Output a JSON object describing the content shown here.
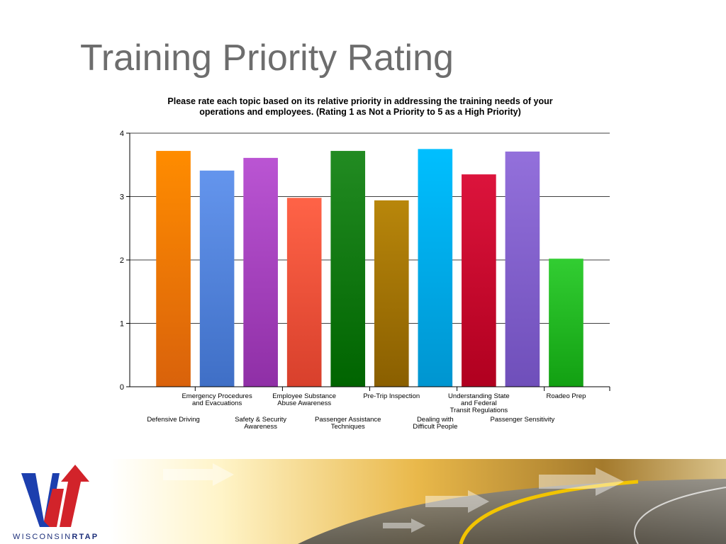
{
  "slide": {
    "title": "Training Priority Rating",
    "logo_text_plain": "WISCONSIN",
    "logo_text_bold": "RTAP"
  },
  "chart_data": {
    "type": "bar",
    "title_line1": "Please rate each topic based on its relative priority in addressing the training needs of your",
    "title_line2": "operations and employees. (Rating 1 as Not a Priority to 5 as a High Priority)",
    "ylim": [
      0,
      4
    ],
    "yticks": [
      "0",
      "1",
      "2",
      "3",
      "4"
    ],
    "grid": true,
    "categories": [
      "Defensive Driving",
      "Emergency Procedures and Evacuations",
      "Safety & Security Awareness",
      "Employee Substance Abuse Awareness",
      "Passenger Assistance Techniques",
      "Pre-Trip Inspection",
      "Dealing with Difficult People",
      "Understanding State and Federal Transit Regulations",
      "Passenger Sensitivity",
      "Roadeo Prep"
    ],
    "category_label_lines": [
      [
        "Defensive Driving"
      ],
      [
        "Emergency Procedures",
        "and Evacuations"
      ],
      [
        "Safety & Security",
        "Awareness"
      ],
      [
        "Employee Substance",
        "Abuse Awareness"
      ],
      [
        "Passenger Assistance",
        "Techniques"
      ],
      [
        "Pre-Trip Inspection"
      ],
      [
        "Dealing with",
        "Difficult People"
      ],
      [
        "Understanding State",
        "and Federal",
        "Transit Regulations"
      ],
      [
        "Passenger Sensitivity"
      ],
      [
        "Roadeo Prep"
      ]
    ],
    "values": [
      3.72,
      3.41,
      3.61,
      2.98,
      3.72,
      2.94,
      3.75,
      3.35,
      3.71,
      2.02
    ],
    "colors": [
      [
        "#ff8c00",
        "#d9620b"
      ],
      [
        "#6495ed",
        "#3f6fc6"
      ],
      [
        "#ba55d3",
        "#8f2fa6"
      ],
      [
        "#ff6347",
        "#d8402c"
      ],
      [
        "#228b22",
        "#006400"
      ],
      [
        "#b8860b",
        "#8a5f00"
      ],
      [
        "#00bfff",
        "#0095d0"
      ],
      [
        "#dc143c",
        "#b0001f"
      ],
      [
        "#9370db",
        "#6f4fba"
      ],
      [
        "#32cd32",
        "#12a012"
      ]
    ]
  }
}
